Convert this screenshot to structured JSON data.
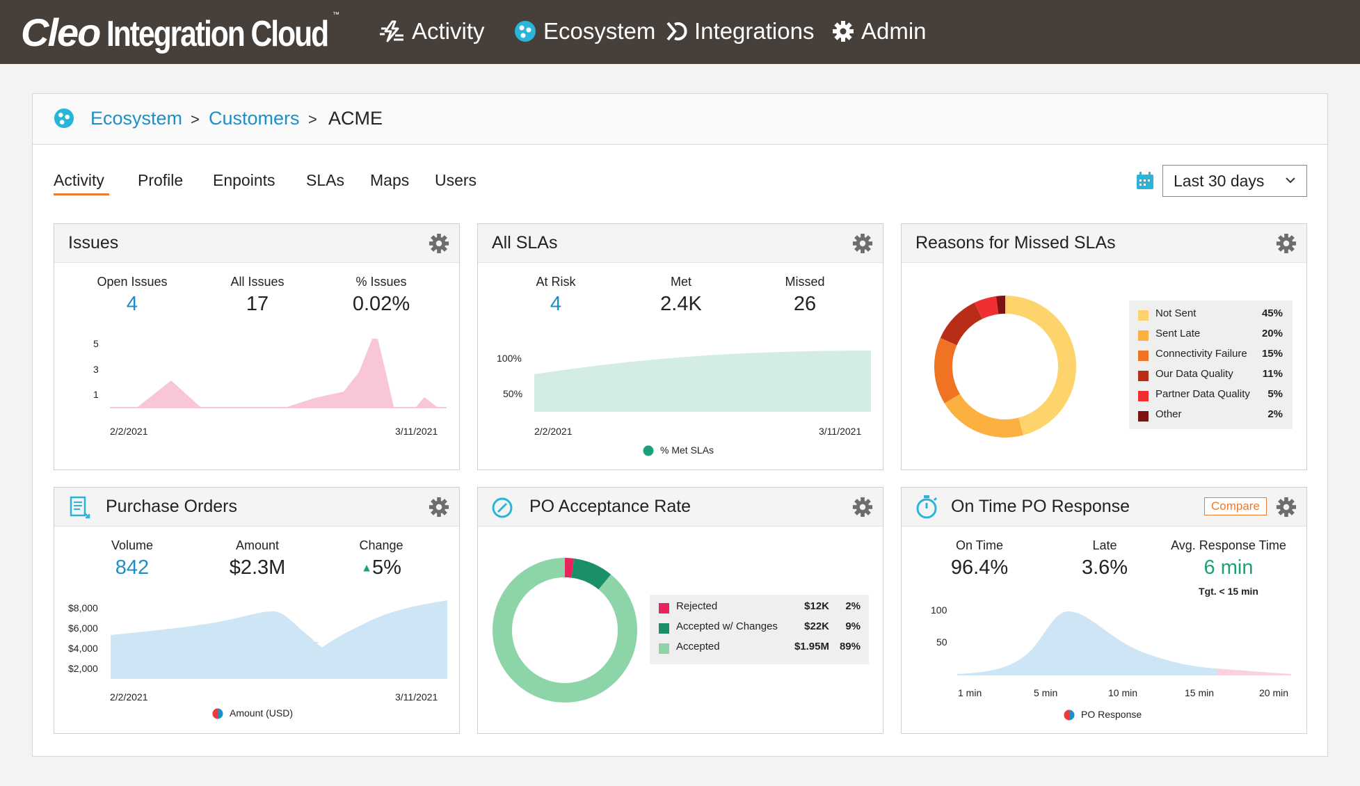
{
  "brand": {
    "part1": "Cleo",
    "part2": "Integration Cloud",
    "tm": "™"
  },
  "nav": [
    {
      "label": "Activity",
      "icon": "activity-icon"
    },
    {
      "label": "Ecosystem",
      "icon": "ecosystem-icon"
    },
    {
      "label": "Integrations",
      "icon": "integrations-icon"
    },
    {
      "label": "Admin",
      "icon": "gear-icon"
    }
  ],
  "breadcrumb": {
    "root": "Ecosystem",
    "parent": "Customers",
    "current": "ACME"
  },
  "tabs": [
    "Activity",
    "Profile",
    "Enpoints",
    "SLAs",
    "Maps",
    "Users"
  ],
  "active_tab": "Activity",
  "date_range": {
    "value": "Last 30 days"
  },
  "colors": {
    "accent_orange": "#e97b2f",
    "link_blue": "#1c8fca",
    "topbar": "#463f3a"
  },
  "issues": {
    "title": "Issues",
    "metrics": [
      {
        "label": "Open Issues",
        "value": "4"
      },
      {
        "label": "All Issues",
        "value": "17"
      },
      {
        "label": "% Issues",
        "value": "0.02%"
      }
    ],
    "y_ticks": [
      "5",
      "3",
      "1"
    ],
    "x_start": "2/2/2021",
    "x_end": "3/11/2021"
  },
  "all_slas": {
    "title": "All SLAs",
    "metrics": [
      {
        "label": "At Risk",
        "value": "4"
      },
      {
        "label": "Met",
        "value": "2.4K"
      },
      {
        "label": "Missed",
        "value": "26"
      }
    ],
    "y_ticks": [
      "100%",
      "50%"
    ],
    "x_start": "2/2/2021",
    "x_end": "3/11/2021",
    "legend": "% Met SLAs"
  },
  "missed_slas": {
    "title": "Reasons for Missed SLAs",
    "items": [
      {
        "label": "Not Sent",
        "pct": "45%",
        "value": 45,
        "color": "#fdd46c"
      },
      {
        "label": "Sent Late",
        "pct": "20%",
        "value": 20,
        "color": "#fbb040"
      },
      {
        "label": "Connectivity Failure",
        "pct": "15%",
        "value": 15,
        "color": "#f07323"
      },
      {
        "label": "Our Data Quality",
        "pct": "11%",
        "value": 11,
        "color": "#b92d18"
      },
      {
        "label": "Partner Data Quality",
        "pct": "5%",
        "value": 5,
        "color": "#ef2f31"
      },
      {
        "label": "Other",
        "pct": "2%",
        "value": 2,
        "color": "#7d1212"
      }
    ]
  },
  "purchase_orders": {
    "title": "Purchase Orders",
    "metrics": [
      {
        "label": "Volume",
        "value": "842"
      },
      {
        "label": "Amount",
        "value": "$2.3M"
      },
      {
        "label": "Change",
        "value": "5%",
        "arrow": "▲"
      }
    ],
    "y_ticks": [
      "$8,000",
      "$6,000",
      "$4,000",
      "$2,000"
    ],
    "x_start": "2/2/2021",
    "x_end": "3/11/2021",
    "legend": "Amount (USD)"
  },
  "po_acceptance": {
    "title": "PO Acceptance Rate",
    "items": [
      {
        "label": "Rejected",
        "amount": "$12K",
        "pct": "2%",
        "value": 2,
        "color": "#e8245c"
      },
      {
        "label": "Accepted w/ Changes",
        "amount": "$22K",
        "pct": "9%",
        "value": 9,
        "color": "#1b8f68"
      },
      {
        "label": "Accepted",
        "amount": "$1.95M",
        "pct": "89%",
        "value": 89,
        "color": "#8dd5a8"
      }
    ]
  },
  "on_time": {
    "title": "On Time PO Response",
    "compare": "Compare",
    "metrics": [
      {
        "label": "On Time",
        "value": "96.4%"
      },
      {
        "label": "Late",
        "value": "3.6%"
      },
      {
        "label": "Avg. Response Time",
        "value": "6 min",
        "sub": "Tgt. < 15 min"
      }
    ],
    "y_ticks": [
      "100",
      "50"
    ],
    "x_ticks": [
      "1 min",
      "5 min",
      "10 min",
      "15 min",
      "20 min"
    ],
    "legend": "PO Response"
  }
}
